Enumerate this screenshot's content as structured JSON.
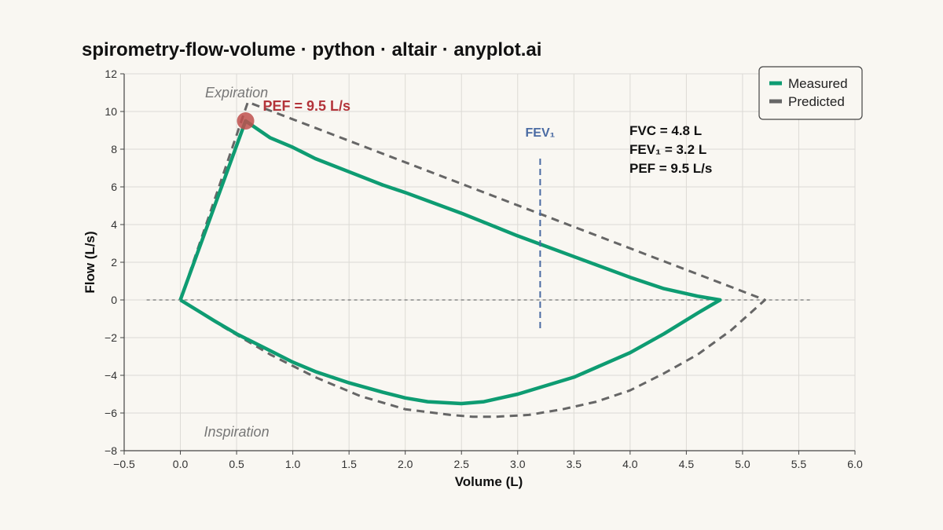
{
  "title": "spirometry-flow-volume · python · altair · anyplot.ai",
  "chart_data": {
    "type": "line",
    "title": "spirometry-flow-volume · python · altair · anyplot.ai",
    "xlabel": "Volume (L)",
    "ylabel": "Flow (L/s)",
    "xlim": [
      -0.5,
      6.0
    ],
    "ylim": [
      -8,
      12
    ],
    "x_ticks": [
      -0.5,
      0.0,
      0.5,
      1.0,
      1.5,
      2.0,
      2.5,
      3.0,
      3.5,
      4.0,
      4.5,
      5.0,
      5.5,
      6.0
    ],
    "x_tick_labels": [
      "−0.5",
      "0.0",
      "0.5",
      "1.0",
      "1.5",
      "2.0",
      "2.5",
      "3.0",
      "3.5",
      "4.0",
      "4.5",
      "5.0",
      "5.5",
      "6.0"
    ],
    "y_ticks": [
      -8,
      -6,
      -4,
      -2,
      0,
      2,
      4,
      6,
      8,
      10,
      12
    ],
    "y_tick_labels": [
      "−8",
      "−6",
      "−4",
      "−2",
      "0",
      "2",
      "4",
      "6",
      "8",
      "10",
      "12"
    ],
    "grid": true,
    "legend_position": "top-right",
    "colors": {
      "measured": "#0e9c72",
      "predicted": "#666666",
      "pef": "#c0504d",
      "fev1": "#4a6ba3",
      "baseline": "#888888"
    },
    "series": [
      {
        "name": "Measured",
        "style": "solid",
        "x": [
          0.0,
          0.58,
          0.8,
          1.0,
          1.2,
          1.5,
          1.8,
          2.0,
          2.5,
          3.0,
          3.5,
          4.0,
          4.3,
          4.6,
          4.8,
          4.6,
          4.3,
          4.0,
          3.5,
          3.0,
          2.7,
          2.5,
          2.2,
          2.0,
          1.8,
          1.5,
          1.2,
          1.0,
          0.8,
          0.5,
          0.3,
          0.0
        ],
        "y": [
          0.0,
          9.5,
          8.6,
          8.1,
          7.5,
          6.8,
          6.1,
          5.7,
          4.6,
          3.4,
          2.3,
          1.2,
          0.6,
          0.2,
          0.0,
          -0.7,
          -1.8,
          -2.8,
          -4.1,
          -5.0,
          -5.4,
          -5.5,
          -5.4,
          -5.2,
          -4.9,
          -4.4,
          -3.8,
          -3.3,
          -2.7,
          -1.8,
          -1.1,
          0.0
        ]
      },
      {
        "name": "Predicted",
        "style": "dashed",
        "x": [
          0.0,
          0.6,
          5.2,
          4.9,
          4.6,
          4.3,
          4.0,
          3.7,
          3.4,
          3.1,
          2.8,
          2.6,
          2.4,
          2.0,
          1.6,
          1.2,
          0.8,
          0.4,
          0.0
        ],
        "y": [
          0.0,
          10.5,
          0.0,
          -1.6,
          -2.9,
          -3.9,
          -4.8,
          -5.4,
          -5.8,
          -6.1,
          -6.2,
          -6.2,
          -6.1,
          -5.8,
          -5.1,
          -4.1,
          -2.9,
          -1.5,
          0.0
        ]
      }
    ],
    "baseline": {
      "y": 0,
      "x_range": [
        -0.3,
        5.6
      ]
    },
    "fev1_marker": {
      "label": "FEV₁",
      "x": 3.2,
      "y_range": [
        -1.5,
        7.7
      ]
    },
    "pef_point": {
      "label": "PEF = 9.5 L/s",
      "x": 0.58,
      "y": 9.5
    },
    "region_labels": [
      {
        "text": "Expiration",
        "x": 0.5,
        "y": 11.0
      },
      {
        "text": "Inspiration",
        "x": 0.5,
        "y": -7.0
      }
    ],
    "metrics": [
      "FVC = 4.8 L",
      "FEV₁ = 3.2 L",
      "PEF = 9.5 L/s"
    ]
  }
}
